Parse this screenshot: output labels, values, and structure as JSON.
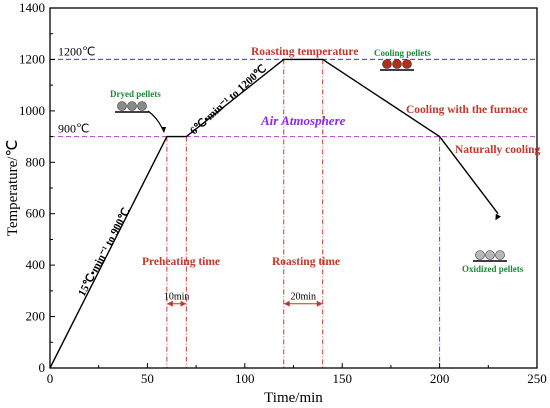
{
  "chart_data": {
    "type": "line",
    "xlabel": "Time/min",
    "ylabel": "Temperature/℃",
    "xlim": [
      0,
      250
    ],
    "ylim": [
      0,
      1400
    ],
    "xticks": [
      0,
      50,
      100,
      150,
      200,
      250
    ],
    "yticks": [
      0,
      200,
      400,
      600,
      800,
      1000,
      1200,
      1400
    ],
    "xtick_labels": [
      "0",
      "50",
      "100",
      "150",
      "200",
      "250"
    ],
    "ytick_labels": [
      "0",
      "200",
      "400",
      "600",
      "800",
      "1000",
      "1200",
      "1400"
    ],
    "grid": false,
    "series": [
      {
        "x": [
          0,
          60,
          70,
          120,
          140,
          200,
          230
        ],
        "y": [
          0,
          900,
          900,
          1200,
          1200,
          900,
          600
        ]
      }
    ],
    "reference_lines": {
      "horizontal": [
        {
          "y": 1200,
          "label": "1200℃",
          "color": "#3a3ac8"
        },
        {
          "y": 900,
          "label": "900℃",
          "color": "#b040c8"
        }
      ],
      "vertical": [
        {
          "x": 60,
          "color": "#c83c3c"
        },
        {
          "x": 70,
          "color": "#c83c3c"
        },
        {
          "x": 120,
          "color": "#c83c3c"
        },
        {
          "x": 140,
          "color": "#c83c3c"
        },
        {
          "x": 200,
          "color": "#7040c8"
        }
      ]
    },
    "intervals": [
      {
        "from": 60,
        "to": 70,
        "y": 250,
        "label": "10min"
      },
      {
        "from": 120,
        "to": 140,
        "y": 250,
        "label": "20min"
      }
    ],
    "annotations": {
      "heating_rate_1": "15℃•min⁻¹ to 900℃",
      "heating_rate_2": "6℃•min⁻¹ to 1200℃",
      "atmosphere": "Air Atmosphere",
      "roasting_temperature": "Roasting temperature",
      "cooling_furnace": "Cooling with the furnace",
      "naturally_cooling": "Naturally cooling",
      "preheating_time": "Preheating time",
      "roasting_time": "Roasting time",
      "dryed_pellets": "Dryed pellets",
      "cooling_pellets": "Cooling pellets",
      "oxidized_pellets": "Oxidized pellets"
    },
    "colors": {
      "curve": "#000000",
      "red_label": "#c0392b",
      "purple_label": "#8a2be2",
      "green_label": "#1a8a3a",
      "dryed_pellet": "#8a8a8a",
      "cooling_pellet": "#b03020",
      "oxidized_pellet": "#b8b8b8"
    }
  }
}
